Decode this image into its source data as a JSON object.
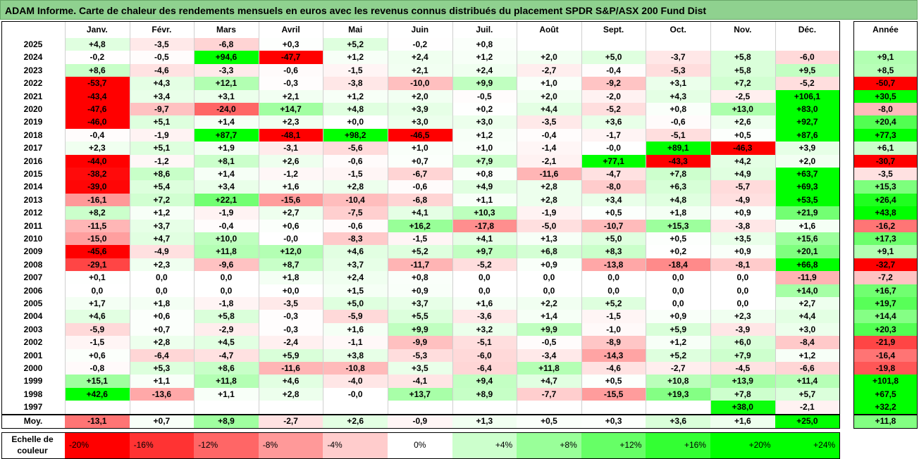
{
  "title": "ADAM Informe. Carte de chaleur des rendements mensuels en euros avec les revenus connus distribués du placement SPDR S&P/ASX 200 Fund Dist",
  "chart_data": {
    "type": "heatmap",
    "months": [
      "Janv.",
      "Févr.",
      "Mars",
      "Avril",
      "Mai",
      "Juin",
      "Juil.",
      "Août",
      "Sept.",
      "Oct.",
      "Nov.",
      "Déc."
    ],
    "year_header": "Année",
    "rows": [
      {
        "year": "2025",
        "values": [
          "+4,8",
          "-3,5",
          "-6,8",
          "+0,3",
          "+5,2",
          "-0,2",
          "+0,8",
          "",
          "",
          "",
          "",
          ""
        ],
        "annual": ""
      },
      {
        "year": "2024",
        "values": [
          "-0,2",
          "-0,5",
          "+94,6",
          "-47,7",
          "+1,2",
          "+2,4",
          "+1,2",
          "+2,0",
          "+5,0",
          "-3,7",
          "+5,8",
          "-6,0"
        ],
        "annual": "+9,1"
      },
      {
        "year": "2023",
        "values": [
          "+8,6",
          "-4,6",
          "-3,3",
          "-0,6",
          "-1,5",
          "+2,1",
          "+2,4",
          "-2,7",
          "-0,4",
          "-5,3",
          "+5,8",
          "+9,5"
        ],
        "annual": "+8,5"
      },
      {
        "year": "2022",
        "values": [
          "-53,7",
          "+4,3",
          "+12,1",
          "-0,3",
          "-3,8",
          "-10,0",
          "+9,9",
          "+1,0",
          "-9,2",
          "+3,1",
          "+7,2",
          "-5,2"
        ],
        "annual": "-50,7"
      },
      {
        "year": "2021",
        "values": [
          "-43,4",
          "+3,4",
          "+3,1",
          "+2,1",
          "+1,2",
          "+2,0",
          "-0,5",
          "+2,0",
          "-2,0",
          "+4,3",
          "-2,5",
          "+106,1"
        ],
        "annual": "+30,5"
      },
      {
        "year": "2020",
        "values": [
          "-47,6",
          "-9,7",
          "-24,0",
          "+14,7",
          "+4,8",
          "+3,9",
          "+0,2",
          "+4,4",
          "-5,2",
          "+0,8",
          "+13,0",
          "+83,0"
        ],
        "annual": "-8,0"
      },
      {
        "year": "2019",
        "values": [
          "-46,0",
          "+5,1",
          "+1,4",
          "+2,3",
          "+0,0",
          "+3,0",
          "+3,0",
          "-3,5",
          "+3,6",
          "-0,6",
          "+2,6",
          "+92,7"
        ],
        "annual": "+20,4"
      },
      {
        "year": "2018",
        "values": [
          "-0,4",
          "-1,9",
          "+87,7",
          "-48,1",
          "+98,2",
          "-46,5",
          "+1,2",
          "-0,4",
          "-1,7",
          "-5,1",
          "+0,5",
          "+87,6"
        ],
        "annual": "+77,3"
      },
      {
        "year": "2017",
        "values": [
          "+2,3",
          "+5,1",
          "+1,9",
          "-3,1",
          "-5,6",
          "+1,0",
          "+1,0",
          "-1,4",
          "-0,0",
          "+89,1",
          "-46,3",
          "+3,9"
        ],
        "annual": "+6,1"
      },
      {
        "year": "2016",
        "values": [
          "-44,0",
          "-1,2",
          "+8,1",
          "+2,6",
          "-0,6",
          "+0,7",
          "+7,9",
          "-2,1",
          "+77,1",
          "-43,3",
          "+4,2",
          "+2,0"
        ],
        "annual": "-30,7"
      },
      {
        "year": "2015",
        "values": [
          "-38,2",
          "+8,6",
          "+1,4",
          "-1,2",
          "-1,5",
          "-6,7",
          "+0,8",
          "-11,6",
          "-4,7",
          "+7,8",
          "+4,9",
          "+63,7"
        ],
        "annual": "-3,5"
      },
      {
        "year": "2014",
        "values": [
          "-39,0",
          "+5,4",
          "+3,4",
          "+1,6",
          "+2,8",
          "-0,6",
          "+4,9",
          "+2,8",
          "-8,0",
          "+6,3",
          "-5,7",
          "+69,3"
        ],
        "annual": "+15,3"
      },
      {
        "year": "2013",
        "values": [
          "-16,1",
          "+7,2",
          "+22,1",
          "-15,6",
          "-10,4",
          "-6,8",
          "+1,1",
          "+2,8",
          "+3,4",
          "+4,8",
          "-4,9",
          "+53,5"
        ],
        "annual": "+26,4"
      },
      {
        "year": "2012",
        "values": [
          "+8,2",
          "+1,2",
          "-1,9",
          "+2,7",
          "-7,5",
          "+4,1",
          "+10,3",
          "-1,9",
          "+0,5",
          "+1,8",
          "+0,9",
          "+21,9"
        ],
        "annual": "+43,8"
      },
      {
        "year": "2011",
        "values": [
          "-11,5",
          "+3,7",
          "-0,4",
          "+0,6",
          "-0,6",
          "+16,2",
          "-17,8",
          "-5,0",
          "-10,7",
          "+15,3",
          "-3,8",
          "+1,6"
        ],
        "annual": "-16,2"
      },
      {
        "year": "2010",
        "values": [
          "-15,0",
          "+4,7",
          "+10,0",
          "-0,0",
          "-8,3",
          "-1,5",
          "+4,1",
          "+1,3",
          "+5,0",
          "+0,5",
          "+3,5",
          "+15,6"
        ],
        "annual": "+17,3"
      },
      {
        "year": "2009",
        "values": [
          "-45,6",
          "-4,9",
          "+11,8",
          "+12,0",
          "+4,6",
          "+5,2",
          "+9,7",
          "+6,8",
          "+8,3",
          "+0,2",
          "+0,9",
          "+20,1"
        ],
        "annual": "+9,1"
      },
      {
        "year": "2008",
        "values": [
          "-29,1",
          "+2,3",
          "-9,6",
          "+8,7",
          "+3,7",
          "-11,7",
          "-5,2",
          "+0,9",
          "-13,8",
          "-18,4",
          "-8,1",
          "+66,8"
        ],
        "annual": "-32,7"
      },
      {
        "year": "2007",
        "values": [
          "+0,1",
          "0,0",
          "0,0",
          "+1,8",
          "+2,4",
          "+0,8",
          "0,0",
          "0,0",
          "0,0",
          "0,0",
          "0,0",
          "-11,9"
        ],
        "annual": "-7,2"
      },
      {
        "year": "2006",
        "values": [
          "0,0",
          "0,0",
          "0,0",
          "+0,0",
          "+1,5",
          "+0,9",
          "0,0",
          "0,0",
          "0,0",
          "0,0",
          "0,0",
          "+14,0"
        ],
        "annual": "+16,7"
      },
      {
        "year": "2005",
        "values": [
          "+1,7",
          "+1,8",
          "-1,8",
          "-3,5",
          "+5,0",
          "+3,7",
          "+1,6",
          "+2,2",
          "+5,2",
          "0,0",
          "0,0",
          "+2,7"
        ],
        "annual": "+19,7"
      },
      {
        "year": "2004",
        "values": [
          "+4,6",
          "+0,6",
          "+5,8",
          "-0,3",
          "-5,9",
          "+5,5",
          "-3,6",
          "+1,4",
          "-1,5",
          "+0,9",
          "+2,3",
          "+4,4"
        ],
        "annual": "+14,4"
      },
      {
        "year": "2003",
        "values": [
          "-5,9",
          "+0,7",
          "-2,9",
          "-0,3",
          "+1,6",
          "+9,9",
          "+3,2",
          "+9,9",
          "-1,0",
          "+5,9",
          "-3,9",
          "+3,0"
        ],
        "annual": "+20,3"
      },
      {
        "year": "2002",
        "values": [
          "-1,5",
          "+2,8",
          "+4,5",
          "-2,4",
          "-1,1",
          "-9,9",
          "-5,1",
          "-0,5",
          "-8,9",
          "+1,2",
          "+6,0",
          "-8,4"
        ],
        "annual": "-21,9"
      },
      {
        "year": "2001",
        "values": [
          "+0,6",
          "-6,4",
          "-4,7",
          "+5,9",
          "+3,8",
          "-5,3",
          "-6,0",
          "-3,4",
          "-14,3",
          "+5,2",
          "+7,9",
          "+1,2"
        ],
        "annual": "-16,4"
      },
      {
        "year": "2000",
        "values": [
          "-0,8",
          "+5,3",
          "+8,6",
          "-11,6",
          "-10,8",
          "+3,5",
          "-6,4",
          "+11,8",
          "-4,6",
          "-2,7",
          "-4,5",
          "-6,6"
        ],
        "annual": "-19,8"
      },
      {
        "year": "1999",
        "values": [
          "+15,1",
          "+1,1",
          "+11,8",
          "+4,6",
          "-4,0",
          "-4,1",
          "+9,4",
          "+4,7",
          "+0,5",
          "+10,8",
          "+13,9",
          "+11,4"
        ],
        "annual": "+101,8"
      },
      {
        "year": "1998",
        "values": [
          "+42,6",
          "-13,6",
          "+1,1",
          "+2,8",
          "-0,0",
          "+13,7",
          "+8,9",
          "-7,7",
          "-15,5",
          "+19,3",
          "+7,8",
          "+5,7"
        ],
        "annual": "+67,5"
      },
      {
        "year": "1997",
        "values": [
          "",
          "",
          "",
          "",
          "",
          "",
          "",
          "",
          "",
          "",
          "+38,0",
          "-2,1"
        ],
        "annual": "+32,2"
      }
    ],
    "average": {
      "label": "Moy.",
      "values": [
        "-13,1",
        "+0,7",
        "+8,9",
        "-2,7",
        "+2,6",
        "-0,9",
        "+1,3",
        "+0,5",
        "+0,3",
        "+3,6",
        "+1,6",
        "+25,0"
      ],
      "annual": "+11,8"
    },
    "scale": {
      "label_line1": "Echelle de",
      "label_line2": "couleur",
      "steps": [
        {
          "label": "-20%",
          "v": -20
        },
        {
          "label": "-16%",
          "v": -16
        },
        {
          "label": "-12%",
          "v": -12
        },
        {
          "label": "-8%",
          "v": -8
        },
        {
          "label": "-4%",
          "v": -4
        },
        {
          "label": "0%",
          "v": 0
        },
        {
          "label": "+4%",
          "v": 4
        },
        {
          "label": "+8%",
          "v": 8
        },
        {
          "label": "+12%",
          "v": 12
        },
        {
          "label": "+16%",
          "v": 16
        },
        {
          "label": "+20%",
          "v": 20
        },
        {
          "label": "+24%",
          "v": 24
        }
      ]
    },
    "colors": {
      "negative": "#FF0000",
      "positive": "#00FF00",
      "neutral": "#FFFFFF",
      "title_bg": "#8FD18F"
    }
  }
}
